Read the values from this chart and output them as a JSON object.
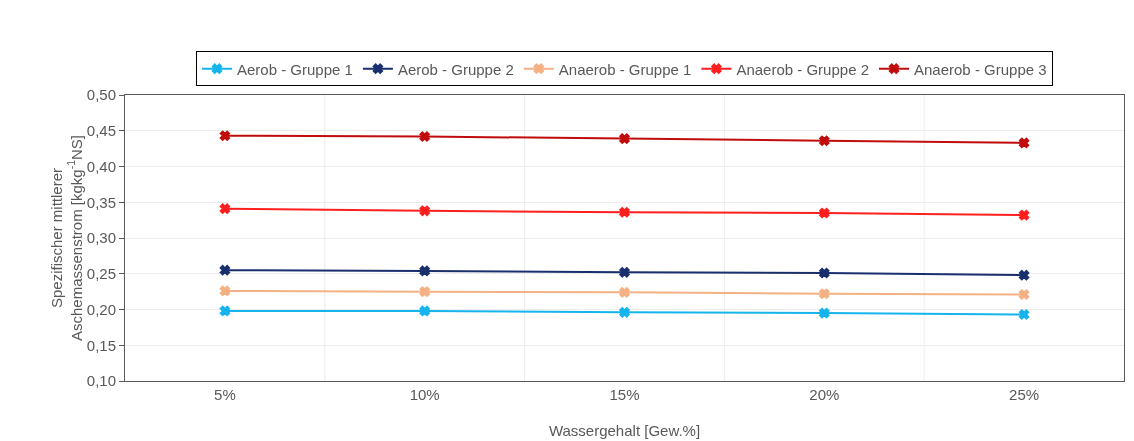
{
  "chart_data": {
    "type": "line",
    "xlabel": "Wassergehalt [Gew.%]",
    "ylabel": "Spezifischer mittlerer\nAschemassenstrom [kgkg$^{-1}$NS]",
    "categories": [
      "5%",
      "10%",
      "15%",
      "20%",
      "25%"
    ],
    "series": [
      {
        "name": "Aerob - Gruppe 1",
        "color": "#16b4ec",
        "values": [
          0.198,
          0.198,
          0.196,
          0.195,
          0.193
        ]
      },
      {
        "name": "Aerob - Gruppe 2",
        "color": "#1a2f6e",
        "values": [
          0.255,
          0.254,
          0.252,
          0.251,
          0.248
        ]
      },
      {
        "name": "Anaerob - Gruppe 1",
        "color": "#f4b183",
        "values": [
          0.226,
          0.225,
          0.224,
          0.222,
          0.221
        ]
      },
      {
        "name": "Anaerob - Gruppe 2",
        "color": "#ff1f1f",
        "values": [
          0.341,
          0.338,
          0.336,
          0.335,
          0.332
        ]
      },
      {
        "name": "Anaerob - Gruppe 3",
        "color": "#c00c0c",
        "values": [
          0.443,
          0.442,
          0.439,
          0.436,
          0.433
        ]
      }
    ],
    "ylim": [
      0.1,
      0.5
    ],
    "yticks": [
      {
        "value": 0.1,
        "label": "0,10"
      },
      {
        "value": 0.15,
        "label": "0,15"
      },
      {
        "value": 0.2,
        "label": "0,20"
      },
      {
        "value": 0.25,
        "label": "0,25"
      },
      {
        "value": 0.3,
        "label": "0,30"
      },
      {
        "value": 0.35,
        "label": "0,35"
      },
      {
        "value": 0.4,
        "label": "0,40"
      },
      {
        "value": 0.45,
        "label": "0,45"
      },
      {
        "value": 0.5,
        "label": "0,50"
      }
    ],
    "grid": true,
    "legend": "top",
    "marker": "cross",
    "line_style": "solid"
  }
}
